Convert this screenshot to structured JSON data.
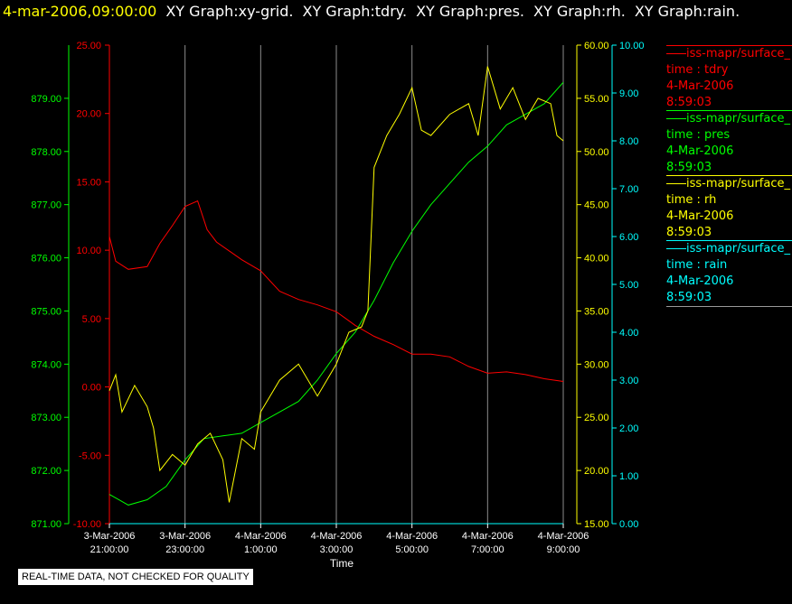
{
  "header": {
    "timestamp": "4-mar-2006,09:00:00",
    "graphs": [
      "XY Graph:xy-grid.",
      "XY Graph:tdry.",
      "XY Graph:pres.",
      "XY Graph:rh.",
      "XY Graph:rain."
    ]
  },
  "legend": [
    {
      "source": "iss-mapr/surface_",
      "var": "time : tdry",
      "date": "4-Mar-2006",
      "time": "8:59:03",
      "color": "#ff0000"
    },
    {
      "source": "iss-mapr/surface_",
      "var": "time : pres",
      "date": "4-Mar-2006",
      "time": "8:59:03",
      "color": "#00ff00"
    },
    {
      "source": "iss-mapr/surface_",
      "var": "time : rh",
      "date": "4-Mar-2006",
      "time": "8:59:03",
      "color": "#ffff00"
    },
    {
      "source": "iss-mapr/surface_",
      "var": "time : rain",
      "date": "4-Mar-2006",
      "time": "8:59:03",
      "color": "#00ffff"
    }
  ],
  "disclaimer": "REAL-TIME DATA, NOT CHECKED FOR QUALITY",
  "chart_data": {
    "type": "line",
    "xlabel": "Time",
    "x_ticks": [
      {
        "date": "3-Mar-2006",
        "time": "21:00:00"
      },
      {
        "date": "3-Mar-2006",
        "time": "23:00:00"
      },
      {
        "date": "4-Mar-2006",
        "time": "1:00:00"
      },
      {
        "date": "4-Mar-2006",
        "time": "3:00:00"
      },
      {
        "date": "4-Mar-2006",
        "time": "5:00:00"
      },
      {
        "date": "4-Mar-2006",
        "time": "7:00:00"
      },
      {
        "date": "4-Mar-2006",
        "time": "9:00:00"
      }
    ],
    "x_range": [
      "3-Mar-2006 21:00",
      "4-Mar-2006 09:00"
    ],
    "grid": "vertical",
    "axes": {
      "pres": {
        "color": "#00ff00",
        "min": 871.0,
        "max": 880.0,
        "ticks": [
          "871.00",
          "872.00",
          "873.00",
          "874.00",
          "875.00",
          "876.00",
          "877.00",
          "878.00",
          "879.00"
        ]
      },
      "tdry": {
        "color": "#ff0000",
        "min": -10.0,
        "max": 25.0,
        "ticks": [
          "-10.00",
          "-5.00",
          "0.00",
          "5.00",
          "10.00",
          "15.00",
          "20.00",
          "25.00"
        ]
      },
      "rh": {
        "color": "#ffff00",
        "min": 15.0,
        "max": 60.0,
        "ticks": [
          "15.00",
          "20.00",
          "25.00",
          "30.00",
          "35.00",
          "40.00",
          "45.00",
          "50.00",
          "55.00",
          "60.00"
        ]
      },
      "rain": {
        "color": "#00ffff",
        "min": 0.0,
        "max": 10.0,
        "ticks": [
          "0.00",
          "1.00",
          "2.00",
          "3.00",
          "4.00",
          "5.00",
          "6.00",
          "7.00",
          "8.00",
          "9.00",
          "10.00"
        ]
      }
    },
    "series": [
      {
        "name": "time : tdry",
        "axis": "tdry",
        "color": "#ff0000",
        "x": [
          "3-Mar-2006 21:00",
          "3-Mar-2006 21:10",
          "3-Mar-2006 21:30",
          "3-Mar-2006 22:00",
          "3-Mar-2006 22:20",
          "3-Mar-2006 22:40",
          "3-Mar-2006 23:00",
          "3-Mar-2006 23:20",
          "3-Mar-2006 23:35",
          "3-Mar-2006 23:50",
          "4-Mar-2006 00:30",
          "4-Mar-2006 01:00",
          "4-Mar-2006 01:30",
          "4-Mar-2006 02:00",
          "4-Mar-2006 02:30",
          "4-Mar-2006 03:00",
          "4-Mar-2006 03:30",
          "4-Mar-2006 04:00",
          "4-Mar-2006 04:30",
          "4-Mar-2006 05:00",
          "4-Mar-2006 05:30",
          "4-Mar-2006 06:00",
          "4-Mar-2006 06:30",
          "4-Mar-2006 07:00",
          "4-Mar-2006 07:30",
          "4-Mar-2006 08:00",
          "4-Mar-2006 08:30",
          "4-Mar-2006 09:00"
        ],
        "y": [
          11.0,
          9.2,
          8.6,
          8.8,
          10.5,
          11.8,
          13.2,
          13.6,
          11.5,
          10.6,
          9.3,
          8.5,
          7.0,
          6.4,
          6.0,
          5.5,
          4.5,
          3.7,
          3.1,
          2.4,
          2.4,
          2.2,
          1.5,
          1.0,
          1.1,
          0.9,
          0.6,
          0.4
        ]
      },
      {
        "name": "time : pres",
        "axis": "pres",
        "color": "#00ff00",
        "x": [
          "3-Mar-2006 21:00",
          "3-Mar-2006 21:30",
          "3-Mar-2006 22:00",
          "3-Mar-2006 22:30",
          "3-Mar-2006 23:00",
          "3-Mar-2006 23:30",
          "4-Mar-2006 00:00",
          "4-Mar-2006 00:30",
          "4-Mar-2006 01:00",
          "4-Mar-2006 01:30",
          "4-Mar-2006 02:00",
          "4-Mar-2006 02:30",
          "4-Mar-2006 03:00",
          "4-Mar-2006 03:30",
          "4-Mar-2006 04:00",
          "4-Mar-2006 04:30",
          "4-Mar-2006 05:00",
          "4-Mar-2006 05:30",
          "4-Mar-2006 06:00",
          "4-Mar-2006 06:30",
          "4-Mar-2006 07:00",
          "4-Mar-2006 07:30",
          "4-Mar-2006 08:00",
          "4-Mar-2006 08:30",
          "4-Mar-2006 09:00"
        ],
        "y": [
          871.55,
          871.35,
          871.45,
          871.7,
          872.2,
          872.6,
          872.65,
          872.7,
          872.9,
          873.1,
          873.3,
          873.7,
          874.2,
          874.6,
          875.2,
          875.9,
          876.5,
          877.0,
          877.4,
          877.8,
          878.1,
          878.5,
          878.7,
          878.9,
          879.3
        ]
      },
      {
        "name": "time : rh",
        "axis": "rh",
        "color": "#ffff00",
        "x": [
          "3-Mar-2006 21:00",
          "3-Mar-2006 21:10",
          "3-Mar-2006 21:20",
          "3-Mar-2006 21:40",
          "3-Mar-2006 22:00",
          "3-Mar-2006 22:10",
          "3-Mar-2006 22:20",
          "3-Mar-2006 22:40",
          "3-Mar-2006 23:00",
          "3-Mar-2006 23:20",
          "3-Mar-2006 23:40",
          "4-Mar-2006 00:00",
          "4-Mar-2006 00:10",
          "4-Mar-2006 00:30",
          "4-Mar-2006 00:50",
          "4-Mar-2006 01:00",
          "4-Mar-2006 01:30",
          "4-Mar-2006 02:00",
          "4-Mar-2006 02:30",
          "4-Mar-2006 03:00",
          "4-Mar-2006 03:20",
          "4-Mar-2006 03:40",
          "4-Mar-2006 03:50",
          "4-Mar-2006 04:00",
          "4-Mar-2006 04:20",
          "4-Mar-2006 04:40",
          "4-Mar-2006 05:00",
          "4-Mar-2006 05:15",
          "4-Mar-2006 05:30",
          "4-Mar-2006 06:00",
          "4-Mar-2006 06:30",
          "4-Mar-2006 06:45",
          "4-Mar-2006 07:00",
          "4-Mar-2006 07:20",
          "4-Mar-2006 07:40",
          "4-Mar-2006 08:00",
          "4-Mar-2006 08:20",
          "4-Mar-2006 08:40",
          "4-Mar-2006 08:50",
          "4-Mar-2006 09:00"
        ],
        "y": [
          27.5,
          29.0,
          25.5,
          28.0,
          26.0,
          24.0,
          20.0,
          21.5,
          20.5,
          22.5,
          23.5,
          21.0,
          17.0,
          23.0,
          22.0,
          25.5,
          28.5,
          30.0,
          27.0,
          30.0,
          33.0,
          33.5,
          35.0,
          48.5,
          51.5,
          53.5,
          56.0,
          52.0,
          51.5,
          53.5,
          54.5,
          51.5,
          58.0,
          54.0,
          56.0,
          53.0,
          55.0,
          54.5,
          51.5,
          51.0
        ]
      },
      {
        "name": "time : rain",
        "axis": "rain",
        "color": "#00ffff",
        "x": [
          "3-Mar-2006 21:00",
          "4-Mar-2006 09:00"
        ],
        "y": [
          0.0,
          0.0
        ]
      }
    ]
  }
}
